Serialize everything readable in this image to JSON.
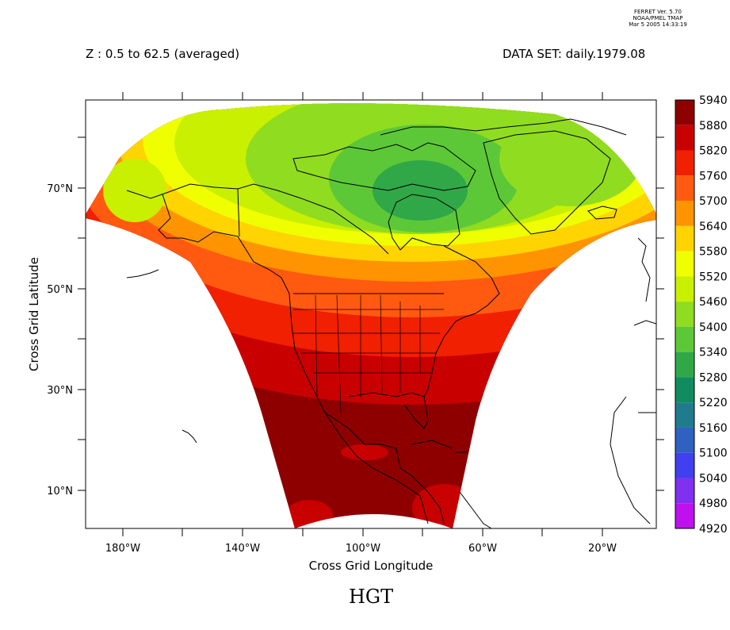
{
  "stamp": {
    "line1": "FERRET Ver. 5.70",
    "line2": "NOAA/PMEL TMAP",
    "line3": "Mar  5 2005 14:33:19"
  },
  "header": {
    "z_range": "Z : 0.5 to 62.5 (averaged)",
    "dataset": "DATA SET: daily.1979.08"
  },
  "axes": {
    "xlabel": "Cross Grid Longitude",
    "ylabel": "Cross Grid Latitude",
    "x_ticks": [
      "180°W",
      "140°W",
      "100°W",
      "60°W",
      "20°W"
    ],
    "y_ticks": [
      "70°N",
      "50°N",
      "30°N",
      "10°N"
    ]
  },
  "plot_title": "HGT",
  "colorbar": {
    "levels": [
      "5940",
      "5880",
      "5820",
      "5760",
      "5700",
      "5640",
      "5580",
      "5520",
      "5460",
      "5400",
      "5340",
      "5280",
      "5220",
      "5160",
      "5100",
      "5040",
      "4980",
      "4920"
    ],
    "colors": [
      "#8e0000",
      "#c80000",
      "#f02000",
      "#ff5a10",
      "#ff9400",
      "#ffd400",
      "#f0ff00",
      "#c8f000",
      "#90dc20",
      "#5cc838",
      "#30a848",
      "#108c60",
      "#207c8c",
      "#3060c0",
      "#4040f0",
      "#8030f0",
      "#c010f0"
    ]
  },
  "chart_data": {
    "type": "heatmap",
    "variable": "HGT",
    "dataset": "daily.1979.08",
    "z": "0.5 to 62.5 (averaged)",
    "projection": "curvilinear cross grid (North America sector)",
    "x_ticks": [
      "180°W",
      "140°W",
      "100°W",
      "60°W",
      "20°W"
    ],
    "y_ticks": [
      "70°N",
      "50°N",
      "30°N",
      "10°N"
    ],
    "contour_levels": [
      4920,
      4980,
      5040,
      5100,
      5160,
      5220,
      5280,
      5340,
      5400,
      5460,
      5520,
      5580,
      5640,
      5700,
      5760,
      5820,
      5880,
      5940
    ],
    "observed_range": [
      5280,
      5940
    ],
    "min_location": "over Hudson Bay / northern Canada",
    "max_location": "subtropics (Mexico, Gulf of Mexico, Caribbean)"
  }
}
